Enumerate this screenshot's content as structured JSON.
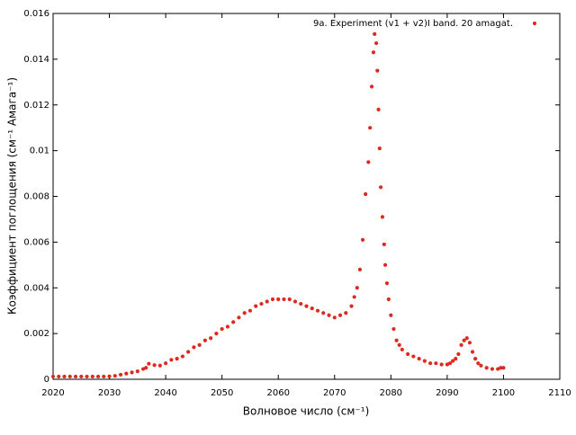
{
  "chart_data": {
    "type": "scatter",
    "xlabel": "Волновое число (см⁻¹)",
    "ylabel": "Коэффициент поглощения (см⁻¹ Амага⁻¹)",
    "xlim": [
      2020,
      2110
    ],
    "xticks": [
      2020,
      2030,
      2040,
      2050,
      2060,
      2070,
      2080,
      2090,
      2100,
      2110
    ],
    "ylim": [
      0,
      0.016
    ],
    "yticks": [
      0,
      0.002,
      0.004,
      0.006,
      0.008,
      0.01,
      0.012,
      0.014,
      0.016
    ],
    "legend": "top-right",
    "series": [
      {
        "name": "9a. Experiment (v1 + v2)I band. 20 amagat.",
        "color": "#dc2a1e",
        "x": [
          2020,
          2021,
          2022,
          2023,
          2024,
          2025,
          2026,
          2027,
          2028,
          2029,
          2030,
          2031,
          2032,
          2033,
          2034,
          2035,
          2036,
          2036.5,
          2037,
          2038,
          2039,
          2040,
          2041,
          2042,
          2043,
          2044,
          2045,
          2046,
          2047,
          2048,
          2049,
          2050,
          2051,
          2052,
          2053,
          2054,
          2055,
          2056,
          2057,
          2058,
          2059,
          2060,
          2061,
          2062,
          2063,
          2064,
          2065,
          2066,
          2067,
          2068,
          2069,
          2070,
          2071,
          2072,
          2073,
          2073.5,
          2074,
          2074.5,
          2075,
          2075.5,
          2076,
          2076.3,
          2076.6,
          2076.9,
          2077.1,
          2077.4,
          2077.6,
          2077.8,
          2078,
          2078.2,
          2078.5,
          2078.8,
          2079,
          2079.3,
          2079.6,
          2080,
          2080.5,
          2081,
          2081.5,
          2082,
          2083,
          2084,
          2085,
          2086,
          2087,
          2088,
          2089,
          2090,
          2090.5,
          2091,
          2091.5,
          2092,
          2092.5,
          2093,
          2093.5,
          2094,
          2094.5,
          2095,
          2095.5,
          2096,
          2097,
          2098,
          2099,
          2099.5,
          2100
        ],
        "values": [
          0.00012,
          0.00012,
          0.00012,
          0.00012,
          0.00012,
          0.00012,
          0.00012,
          0.00012,
          0.00012,
          0.00012,
          0.00013,
          0.00015,
          0.0002,
          0.00025,
          0.0003,
          0.00035,
          0.00045,
          0.0005,
          0.00068,
          0.00062,
          0.0006,
          0.0007,
          0.00085,
          0.0009,
          0.001,
          0.0012,
          0.0014,
          0.0015,
          0.0017,
          0.0018,
          0.002,
          0.0022,
          0.0023,
          0.0025,
          0.0027,
          0.0029,
          0.003,
          0.0032,
          0.0033,
          0.0034,
          0.0035,
          0.0035,
          0.0035,
          0.0035,
          0.0034,
          0.0033,
          0.0032,
          0.0031,
          0.003,
          0.0029,
          0.0028,
          0.0027,
          0.0028,
          0.0029,
          0.0032,
          0.0036,
          0.004,
          0.0048,
          0.0061,
          0.0081,
          0.0095,
          0.011,
          0.0128,
          0.0143,
          0.0151,
          0.0147,
          0.0135,
          0.0118,
          0.0101,
          0.0084,
          0.0071,
          0.0059,
          0.005,
          0.0042,
          0.0035,
          0.0028,
          0.0022,
          0.0017,
          0.0015,
          0.0013,
          0.0011,
          0.001,
          0.0009,
          0.0008,
          0.0007,
          0.0007,
          0.00065,
          0.00065,
          0.0007,
          0.0008,
          0.0009,
          0.0011,
          0.0015,
          0.0017,
          0.0018,
          0.0016,
          0.0012,
          0.0009,
          0.0007,
          0.0006,
          0.0005,
          0.00045,
          0.00045,
          0.0005,
          0.0005
        ]
      }
    ]
  }
}
